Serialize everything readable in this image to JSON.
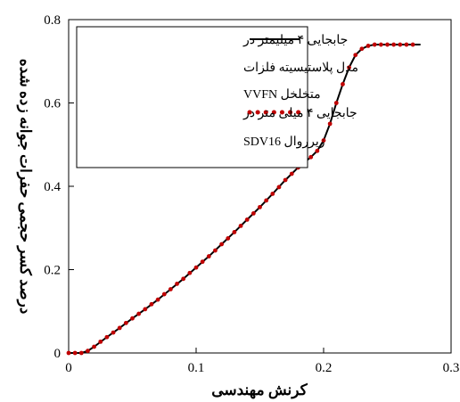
{
  "chart_data": {
    "type": "line",
    "xlabel": "کرنش مهندسی",
    "ylabel": "درصد کسر حجمی حفرات جوانه زده شده",
    "xlim": [
      0,
      0.3
    ],
    "ylim": [
      0,
      0.8
    ],
    "xticks": [
      0,
      0.1,
      0.2,
      0.3
    ],
    "yticks": [
      0,
      0.2,
      0.4,
      0.6,
      0.8
    ],
    "legend_position": "top-left",
    "grid": false,
    "series": [
      {
        "name_lines": [
          "جابجایی ۴ میلیمتر در",
          "مدل پلاستیسیته فلزات",
          "متخلخل VVFN"
        ],
        "style": "solid",
        "color": "#000000",
        "x": [
          0,
          0.01,
          0.015,
          0.02,
          0.03,
          0.04,
          0.05,
          0.06,
          0.07,
          0.08,
          0.09,
          0.1,
          0.11,
          0.12,
          0.13,
          0.14,
          0.15,
          0.16,
          0.17,
          0.18,
          0.19,
          0.195,
          0.2,
          0.205,
          0.21,
          0.215,
          0.22,
          0.225,
          0.23,
          0.235,
          0.24,
          0.25,
          0.26,
          0.27,
          0.276
        ],
        "y": [
          0,
          0,
          0.005,
          0.015,
          0.038,
          0.06,
          0.083,
          0.105,
          0.128,
          0.153,
          0.178,
          0.205,
          0.232,
          0.261,
          0.29,
          0.32,
          0.35,
          0.382,
          0.415,
          0.445,
          0.47,
          0.485,
          0.51,
          0.55,
          0.6,
          0.645,
          0.685,
          0.715,
          0.73,
          0.737,
          0.74,
          0.74,
          0.74,
          0.74,
          0.74
        ]
      },
      {
        "name_lines": [
          "جابجایی ۴ میلی متر در",
          "زیرروال SDV16"
        ],
        "style": "dotted",
        "color": "#c00000",
        "x": [
          0,
          0.005,
          0.01,
          0.015,
          0.02,
          0.025,
          0.03,
          0.035,
          0.04,
          0.045,
          0.05,
          0.055,
          0.06,
          0.065,
          0.07,
          0.075,
          0.08,
          0.085,
          0.09,
          0.095,
          0.1,
          0.105,
          0.11,
          0.115,
          0.12,
          0.125,
          0.13,
          0.135,
          0.14,
          0.145,
          0.15,
          0.155,
          0.16,
          0.165,
          0.17,
          0.175,
          0.18,
          0.185,
          0.19,
          0.195,
          0.2,
          0.205,
          0.21,
          0.215,
          0.22,
          0.225,
          0.23,
          0.235,
          0.24,
          0.245,
          0.25,
          0.255,
          0.26,
          0.265,
          0.27
        ],
        "y": [
          0,
          0,
          0,
          0.005,
          0.015,
          0.027,
          0.038,
          0.049,
          0.06,
          0.072,
          0.083,
          0.094,
          0.105,
          0.117,
          0.128,
          0.141,
          0.153,
          0.166,
          0.178,
          0.192,
          0.205,
          0.219,
          0.232,
          0.246,
          0.261,
          0.275,
          0.29,
          0.305,
          0.32,
          0.335,
          0.35,
          0.366,
          0.382,
          0.398,
          0.415,
          0.43,
          0.445,
          0.458,
          0.47,
          0.485,
          0.51,
          0.55,
          0.6,
          0.645,
          0.685,
          0.715,
          0.73,
          0.737,
          0.74,
          0.74,
          0.74,
          0.74,
          0.74,
          0.74,
          0.74
        ]
      }
    ]
  }
}
